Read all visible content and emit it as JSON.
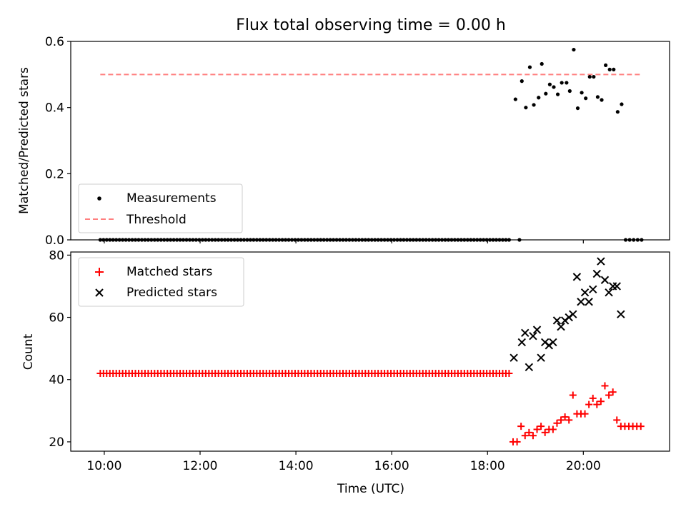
{
  "title": "Flux total observing time = 0.00 h",
  "xlabel": "Time (UTC)",
  "xticks": [
    {
      "t": 10,
      "label": "10:00"
    },
    {
      "t": 12,
      "label": "12:00"
    },
    {
      "t": 14,
      "label": "14:00"
    },
    {
      "t": 16,
      "label": "16:00"
    },
    {
      "t": 18,
      "label": "18:00"
    },
    {
      "t": 20,
      "label": "20:00"
    }
  ],
  "colors": {
    "measurements": "#000000",
    "threshold": "#ff7f7f",
    "matched": "#ff0000",
    "predicted": "#000000"
  },
  "chart_data": [
    {
      "type": "scatter",
      "ylabel": "Matched/Predicted stars",
      "xlim_hours": [
        9.3,
        21.8
      ],
      "ylim": [
        0,
        0.6
      ],
      "yticks": [
        0.0,
        0.2,
        0.4,
        0.6
      ],
      "ytick_labels": [
        "0.0",
        "0.2",
        "0.4",
        "0.6"
      ],
      "legend": {
        "position": "lower-left",
        "entries": [
          "Measurements",
          "Threshold"
        ]
      },
      "threshold": {
        "name": "Threshold",
        "y": 0.5,
        "x_start": "09:55",
        "x_end": "21:12"
      },
      "zero_run": {
        "start": "09:55",
        "end": "18:30",
        "step_minutes": 4,
        "y": 0
      },
      "measurements": [
        {
          "x": "18:35",
          "y": 0.425
        },
        {
          "x": "18:40",
          "y": 0.0
        },
        {
          "x": "18:43",
          "y": 0.48
        },
        {
          "x": "18:48",
          "y": 0.4
        },
        {
          "x": "18:53",
          "y": 0.522
        },
        {
          "x": "18:58",
          "y": 0.408
        },
        {
          "x": "19:04",
          "y": 0.43
        },
        {
          "x": "19:08",
          "y": 0.532
        },
        {
          "x": "19:13",
          "y": 0.442
        },
        {
          "x": "19:18",
          "y": 0.47
        },
        {
          "x": "19:23",
          "y": 0.462
        },
        {
          "x": "19:28",
          "y": 0.44
        },
        {
          "x": "19:33",
          "y": 0.475
        },
        {
          "x": "19:39",
          "y": 0.475
        },
        {
          "x": "19:43",
          "y": 0.45
        },
        {
          "x": "19:48",
          "y": 0.575
        },
        {
          "x": "19:53",
          "y": 0.398
        },
        {
          "x": "19:58",
          "y": 0.445
        },
        {
          "x": "20:03",
          "y": 0.428
        },
        {
          "x": "20:08",
          "y": 0.493
        },
        {
          "x": "20:13",
          "y": 0.493
        },
        {
          "x": "20:18",
          "y": 0.432
        },
        {
          "x": "20:23",
          "y": 0.423
        },
        {
          "x": "20:28",
          "y": 0.528
        },
        {
          "x": "20:33",
          "y": 0.515
        },
        {
          "x": "20:38",
          "y": 0.515
        },
        {
          "x": "20:43",
          "y": 0.387
        },
        {
          "x": "20:48",
          "y": 0.41
        },
        {
          "x": "20:53",
          "y": 0.0
        },
        {
          "x": "20:58",
          "y": 0.0
        },
        {
          "x": "21:03",
          "y": 0.0
        },
        {
          "x": "21:08",
          "y": 0.0
        },
        {
          "x": "21:13",
          "y": 0.0
        }
      ]
    },
    {
      "type": "scatter",
      "ylabel": "Count",
      "xlim_hours": [
        9.3,
        21.8
      ],
      "ylim": [
        17,
        81
      ],
      "yticks": [
        20,
        40,
        60,
        80
      ],
      "ytick_labels": [
        "20",
        "40",
        "60",
        "80"
      ],
      "legend": {
        "position": "upper-left",
        "entries": [
          "Matched stars",
          "Predicted stars"
        ]
      },
      "matched_run": {
        "start": "09:55",
        "end": "18:30",
        "step_minutes": 4,
        "y": 42
      },
      "matched": [
        {
          "x": "18:32",
          "y": 20
        },
        {
          "x": "18:37",
          "y": 20
        },
        {
          "x": "18:42",
          "y": 25
        },
        {
          "x": "18:47",
          "y": 22
        },
        {
          "x": "18:52",
          "y": 23
        },
        {
          "x": "18:57",
          "y": 22
        },
        {
          "x": "19:02",
          "y": 24
        },
        {
          "x": "19:07",
          "y": 25
        },
        {
          "x": "19:12",
          "y": 23
        },
        {
          "x": "19:17",
          "y": 24
        },
        {
          "x": "19:22",
          "y": 24
        },
        {
          "x": "19:27",
          "y": 26
        },
        {
          "x": "19:32",
          "y": 27
        },
        {
          "x": "19:37",
          "y": 28
        },
        {
          "x": "19:42",
          "y": 27
        },
        {
          "x": "19:47",
          "y": 35
        },
        {
          "x": "19:52",
          "y": 29
        },
        {
          "x": "19:57",
          "y": 29
        },
        {
          "x": "20:02",
          "y": 29
        },
        {
          "x": "20:07",
          "y": 32
        },
        {
          "x": "20:12",
          "y": 34
        },
        {
          "x": "20:17",
          "y": 32
        },
        {
          "x": "20:22",
          "y": 33
        },
        {
          "x": "20:27",
          "y": 38
        },
        {
          "x": "20:32",
          "y": 35
        },
        {
          "x": "20:37",
          "y": 36
        },
        {
          "x": "20:42",
          "y": 27
        },
        {
          "x": "20:47",
          "y": 25
        },
        {
          "x": "20:52",
          "y": 25
        },
        {
          "x": "20:57",
          "y": 25
        },
        {
          "x": "21:02",
          "y": 25
        },
        {
          "x": "21:07",
          "y": 25
        },
        {
          "x": "21:12",
          "y": 25
        }
      ],
      "predicted": [
        {
          "x": "18:33",
          "y": 47
        },
        {
          "x": "18:43",
          "y": 52
        },
        {
          "x": "18:47",
          "y": 55
        },
        {
          "x": "18:52",
          "y": 44
        },
        {
          "x": "18:57",
          "y": 54
        },
        {
          "x": "19:02",
          "y": 56
        },
        {
          "x": "19:07",
          "y": 47
        },
        {
          "x": "19:12",
          "y": 52
        },
        {
          "x": "19:17",
          "y": 51
        },
        {
          "x": "19:22",
          "y": 52
        },
        {
          "x": "19:27",
          "y": 59
        },
        {
          "x": "19:32",
          "y": 57
        },
        {
          "x": "19:37",
          "y": 59
        },
        {
          "x": "19:42",
          "y": 60
        },
        {
          "x": "19:47",
          "y": 61
        },
        {
          "x": "19:52",
          "y": 73
        },
        {
          "x": "19:57",
          "y": 65
        },
        {
          "x": "20:02",
          "y": 68
        },
        {
          "x": "20:07",
          "y": 65
        },
        {
          "x": "20:12",
          "y": 69
        },
        {
          "x": "20:17",
          "y": 74
        },
        {
          "x": "20:22",
          "y": 78
        },
        {
          "x": "20:27",
          "y": 72
        },
        {
          "x": "20:32",
          "y": 68
        },
        {
          "x": "20:37",
          "y": 70
        },
        {
          "x": "20:42",
          "y": 70
        },
        {
          "x": "20:47",
          "y": 61
        }
      ]
    }
  ]
}
